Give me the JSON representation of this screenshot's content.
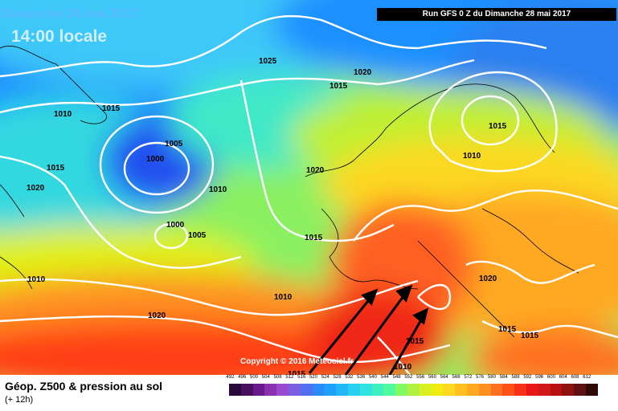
{
  "header": {
    "date": "Dimanche 28 mai 2017",
    "time": "14:00 locale",
    "run": "Run GFS 0 Z du Dimanche 28 mai 2017"
  },
  "copyright": "Copyright © 2016 Meteociel.fr",
  "legend": {
    "title": "Géop. Z500 & pression au sol",
    "subtitle": "(+ 12h)",
    "ticks": [
      "492",
      "496",
      "500",
      "504",
      "508",
      "512",
      "516",
      "520",
      "524",
      "528",
      "532",
      "536",
      "540",
      "544",
      "548",
      "552",
      "556",
      "560",
      "564",
      "568",
      "572",
      "576",
      "580",
      "584",
      "588",
      "592",
      "596",
      "600",
      "604",
      "608",
      "612"
    ],
    "colors": [
      "#2a0a3a",
      "#4a1060",
      "#6a1a8a",
      "#8a30b0",
      "#9a4ad0",
      "#7a60e0",
      "#5070f0",
      "#2b8af8",
      "#1fa0ff",
      "#22b8f8",
      "#2ad0f0",
      "#30e2e0",
      "#3cf0c0",
      "#50f8a0",
      "#80fa60",
      "#b0f040",
      "#d8f020",
      "#f0ec10",
      "#fcd820",
      "#ffc020",
      "#ffa820",
      "#ff9020",
      "#ff7020",
      "#ff5018",
      "#f83018",
      "#e81818",
      "#d01818",
      "#b81010",
      "#901010",
      "#601010",
      "#300808"
    ]
  },
  "isobars": [
    "1015",
    "1025",
    "1020",
    "1015",
    "1010",
    "1015",
    "1005",
    "1000",
    "1015",
    "1020",
    "1010",
    "1000",
    "1005",
    "1010",
    "1015",
    "1005",
    "1010",
    "1020",
    "1015",
    "1010",
    "1020",
    "1015",
    "1020",
    "1015",
    "1010",
    "1015",
    "1010"
  ],
  "accent": {
    "text": "#ffffff",
    "arrows": "#000000"
  }
}
